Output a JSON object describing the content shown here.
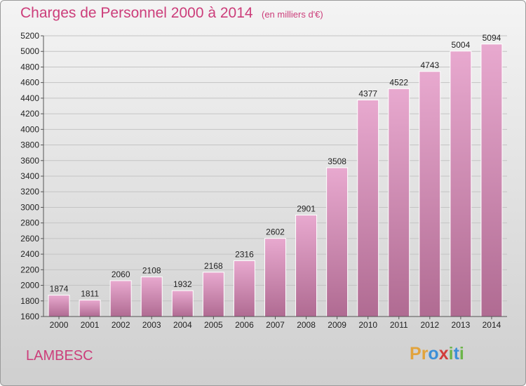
{
  "header": {
    "title": "Charges de Personnel 2000 à 2014",
    "subtitle": "(en milliers d'€)"
  },
  "commune": "LAMBESC",
  "logo": {
    "letters": [
      "P",
      "r",
      "o",
      "x",
      "i",
      "t",
      "i"
    ],
    "colors": [
      "#e2a33c",
      "#e2a33c",
      "#3d8fd8",
      "#d23c3c",
      "#6cb54a",
      "#3d8fd8",
      "#6cb54a"
    ]
  },
  "colors": {
    "accent": "#cc3d7a",
    "bar_top": "#e8a9cf",
    "bar_bottom": "#b06b92"
  },
  "chart_data": {
    "type": "bar",
    "categories": [
      "2000",
      "2001",
      "2002",
      "2003",
      "2004",
      "2005",
      "2006",
      "2007",
      "2008",
      "2009",
      "2010",
      "2011",
      "2012",
      "2013",
      "2014"
    ],
    "values": [
      1874,
      1811,
      2060,
      2108,
      1932,
      2168,
      2316,
      2602,
      2901,
      3508,
      4377,
      4522,
      4743,
      5004,
      5094
    ],
    "ylim": [
      1600,
      5200
    ],
    "yticks": [
      1600,
      1800,
      2000,
      2200,
      2400,
      2600,
      2800,
      3000,
      3200,
      3400,
      3600,
      3800,
      4000,
      4200,
      4400,
      4600,
      4800,
      5000,
      5200
    ],
    "grid": true,
    "data_labels": true
  }
}
